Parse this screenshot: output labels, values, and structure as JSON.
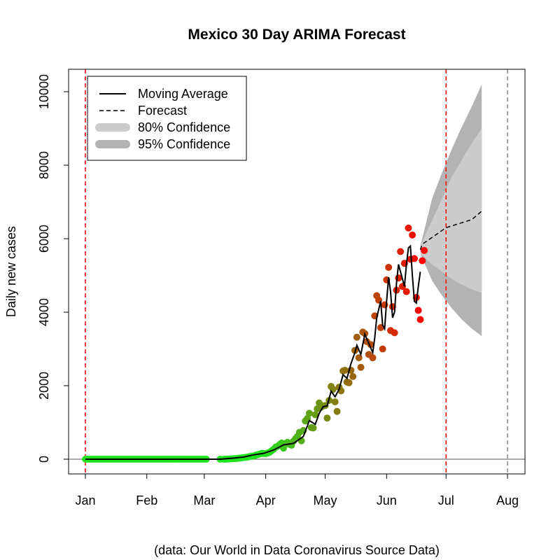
{
  "chart_data": {
    "type": "line",
    "title": "Mexico 30 Day ARIMA Forecast",
    "ylabel": "Daily new cases",
    "xlabel": "",
    "caption": "(data: Our World in Data Coronavirus Source Data)",
    "ylim": [
      -400,
      10400
    ],
    "yticks": [
      0,
      2000,
      4000,
      6000,
      8000,
      10000
    ],
    "xlim_days": [
      0,
      213
    ],
    "xticks": [
      {
        "label": "Jan",
        "day": 0
      },
      {
        "label": "Feb",
        "day": 31
      },
      {
        "label": "Mar",
        "day": 60
      },
      {
        "label": "Apr",
        "day": 91
      },
      {
        "label": "May",
        "day": 121
      },
      {
        "label": "Jun",
        "day": 152
      },
      {
        "label": "Jul",
        "day": 182
      },
      {
        "label": "Aug",
        "day": 213
      }
    ],
    "reference_lines": [
      {
        "day": 0,
        "color": "#ff0000",
        "style": "dashed"
      },
      {
        "day": 182,
        "color": "#ff0000",
        "style": "dashed"
      },
      {
        "day": 213,
        "color": "#888888",
        "style": "dashed"
      }
    ],
    "zero_line": true,
    "legend": {
      "position": "top-left",
      "entries": [
        {
          "label": "Moving Average",
          "kind": "line-solid",
          "color": "#000000"
        },
        {
          "label": "Forecast",
          "kind": "line-dashed",
          "color": "#000000"
        },
        {
          "label": "80% Confidence",
          "kind": "band",
          "color": "#cccccc"
        },
        {
          "label": "95% Confidence",
          "kind": "band",
          "color": "#b3b3b3"
        }
      ]
    },
    "colors": {
      "early": "#1fe31f",
      "late": "#ff0000",
      "ci80": "#cccccc",
      "ci95": "#b3b3b3",
      "forecast": "#000000",
      "moving_average": "#000000"
    },
    "series": [
      {
        "name": "Daily new cases",
        "kind": "scatter",
        "points": [
          [
            0,
            0
          ],
          [
            1,
            0
          ],
          [
            2,
            0
          ],
          [
            3,
            0
          ],
          [
            4,
            0
          ],
          [
            5,
            0
          ],
          [
            6,
            0
          ],
          [
            7,
            0
          ],
          [
            8,
            0
          ],
          [
            9,
            0
          ],
          [
            10,
            0
          ],
          [
            11,
            0
          ],
          [
            12,
            0
          ],
          [
            13,
            0
          ],
          [
            14,
            0
          ],
          [
            15,
            0
          ],
          [
            16,
            0
          ],
          [
            17,
            0
          ],
          [
            18,
            0
          ],
          [
            19,
            0
          ],
          [
            20,
            0
          ],
          [
            21,
            0
          ],
          [
            22,
            0
          ],
          [
            23,
            0
          ],
          [
            24,
            0
          ],
          [
            25,
            0
          ],
          [
            26,
            0
          ],
          [
            27,
            0
          ],
          [
            28,
            0
          ],
          [
            29,
            0
          ],
          [
            30,
            0
          ],
          [
            31,
            0
          ],
          [
            32,
            0
          ],
          [
            33,
            0
          ],
          [
            34,
            0
          ],
          [
            35,
            0
          ],
          [
            36,
            0
          ],
          [
            37,
            0
          ],
          [
            38,
            0
          ],
          [
            39,
            0
          ],
          [
            40,
            0
          ],
          [
            41,
            0
          ],
          [
            42,
            0
          ],
          [
            43,
            0
          ],
          [
            44,
            0
          ],
          [
            45,
            0
          ],
          [
            46,
            0
          ],
          [
            47,
            0
          ],
          [
            48,
            0
          ],
          [
            49,
            0
          ],
          [
            50,
            0
          ],
          [
            51,
            0
          ],
          [
            52,
            0
          ],
          [
            53,
            0
          ],
          [
            54,
            0
          ],
          [
            55,
            0
          ],
          [
            56,
            0
          ],
          [
            57,
            0
          ],
          [
            58,
            0
          ],
          [
            59,
            0
          ],
          [
            60,
            0
          ],
          [
            61,
            0
          ],
          [
            68,
            0
          ],
          [
            70,
            0
          ],
          [
            71,
            2
          ],
          [
            72,
            4
          ],
          [
            73,
            7
          ],
          [
            74,
            12
          ],
          [
            75,
            15
          ],
          [
            76,
            18
          ],
          [
            77,
            25
          ],
          [
            78,
            30
          ],
          [
            79,
            38
          ],
          [
            80,
            45
          ],
          [
            81,
            52
          ],
          [
            82,
            60
          ],
          [
            83,
            75
          ],
          [
            84,
            80
          ],
          [
            85,
            90
          ],
          [
            86,
            110
          ],
          [
            87,
            125
          ],
          [
            88,
            140
          ],
          [
            89,
            160
          ],
          [
            90,
            155
          ],
          [
            91,
            150
          ],
          [
            92,
            170
          ],
          [
            93,
            190
          ],
          [
            94,
            230
          ],
          [
            95,
            270
          ],
          [
            96,
            330
          ],
          [
            97,
            350
          ],
          [
            98,
            400
          ],
          [
            99,
            440
          ],
          [
            100,
            300
          ],
          [
            101,
            430
          ],
          [
            102,
            460
          ],
          [
            103,
            400
          ],
          [
            104,
            380
          ],
          [
            105,
            490
          ],
          [
            106,
            560
          ],
          [
            107,
            620
          ],
          [
            108,
            730
          ],
          [
            109,
            500
          ],
          [
            110,
            780
          ],
          [
            111,
            1040
          ],
          [
            112,
            1110
          ],
          [
            113,
            1250
          ],
          [
            114,
            860
          ],
          [
            115,
            850
          ],
          [
            116,
            1210
          ],
          [
            117,
            1370
          ],
          [
            118,
            1530
          ],
          [
            119,
            1420
          ],
          [
            120,
            1450
          ],
          [
            121,
            1460
          ],
          [
            122,
            1120
          ],
          [
            123,
            1600
          ],
          [
            124,
            1980
          ],
          [
            125,
            1900
          ],
          [
            126,
            1560
          ],
          [
            127,
            1300
          ],
          [
            128,
            1960
          ],
          [
            129,
            1860
          ],
          [
            130,
            2400
          ],
          [
            131,
            2420
          ],
          [
            132,
            2100
          ],
          [
            133,
            2080
          ],
          [
            134,
            2420
          ],
          [
            135,
            2250
          ],
          [
            136,
            2960
          ],
          [
            137,
            3320
          ],
          [
            138,
            2760
          ],
          [
            139,
            2500
          ],
          [
            140,
            3460
          ],
          [
            141,
            3420
          ],
          [
            142,
            3200
          ],
          [
            143,
            2850
          ],
          [
            144,
            3120
          ],
          [
            145,
            2760
          ],
          [
            146,
            3900
          ],
          [
            147,
            4450
          ],
          [
            148,
            4330
          ],
          [
            149,
            3580
          ],
          [
            150,
            3000
          ],
          [
            151,
            4200
          ],
          [
            152,
            4880
          ],
          [
            153,
            5220
          ],
          [
            154,
            3500
          ],
          [
            155,
            4150
          ],
          [
            156,
            3440
          ],
          [
            157,
            4600
          ],
          [
            158,
            4930
          ],
          [
            159,
            5650
          ],
          [
            160,
            4700
          ],
          [
            161,
            5330
          ],
          [
            162,
            4560
          ],
          [
            163,
            6290
          ],
          [
            164,
            5440
          ],
          [
            165,
            6100
          ],
          [
            166,
            5460
          ],
          [
            167,
            4400
          ],
          [
            168,
            4050
          ],
          [
            169,
            3800
          ],
          [
            170,
            5400
          ],
          [
            171,
            5680
          ]
        ]
      },
      {
        "name": "Moving Average",
        "kind": "line",
        "points": [
          [
            0,
            0
          ],
          [
            61,
            0
          ],
          [
            68,
            0
          ],
          [
            75,
            30
          ],
          [
            80,
            60
          ],
          [
            85,
            120
          ],
          [
            90,
            160
          ],
          [
            95,
            250
          ],
          [
            100,
            390
          ],
          [
            105,
            430
          ],
          [
            110,
            620
          ],
          [
            113,
            1050
          ],
          [
            116,
            950
          ],
          [
            118,
            1250
          ],
          [
            120,
            1430
          ],
          [
            122,
            1450
          ],
          [
            124,
            1850
          ],
          [
            126,
            1700
          ],
          [
            128,
            1900
          ],
          [
            130,
            2300
          ],
          [
            132,
            2200
          ],
          [
            134,
            2600
          ],
          [
            136,
            2900
          ],
          [
            137,
            3100
          ],
          [
            139,
            2850
          ],
          [
            141,
            3400
          ],
          [
            143,
            3150
          ],
          [
            145,
            2900
          ],
          [
            146,
            3300
          ],
          [
            147,
            3850
          ],
          [
            149,
            4300
          ],
          [
            150,
            3650
          ],
          [
            151,
            3550
          ],
          [
            152,
            4300
          ],
          [
            153,
            4950
          ],
          [
            154,
            4550
          ],
          [
            155,
            3850
          ],
          [
            156,
            4000
          ],
          [
            157,
            4800
          ],
          [
            158,
            5300
          ],
          [
            159,
            5100
          ],
          [
            160,
            4900
          ],
          [
            161,
            4700
          ],
          [
            162,
            5300
          ],
          [
            163,
            5750
          ],
          [
            164,
            5800
          ],
          [
            165,
            5000
          ],
          [
            166,
            4300
          ],
          [
            167,
            4250
          ],
          [
            168,
            4700
          ],
          [
            169,
            5100
          ]
        ]
      },
      {
        "name": "Forecast",
        "kind": "line-dashed",
        "points": [
          [
            169,
            5700
          ],
          [
            170,
            5850
          ],
          [
            182,
            6300
          ],
          [
            195,
            6520
          ],
          [
            200,
            6750
          ]
        ]
      },
      {
        "name": "95% Confidence",
        "kind": "band",
        "x": [
          169,
          175,
          180,
          185,
          190,
          195,
          200
        ],
        "upper": [
          5800,
          7100,
          7800,
          8450,
          9050,
          9600,
          10200
        ],
        "lower": [
          5600,
          4850,
          4450,
          4100,
          3800,
          3550,
          3350
        ]
      },
      {
        "name": "80% Confidence",
        "kind": "band",
        "x": [
          169,
          175,
          180,
          185,
          190,
          195,
          200
        ],
        "upper": [
          5800,
          6500,
          7100,
          7700,
          8150,
          8600,
          9000
        ],
        "lower": [
          5600,
          5300,
          5100,
          4900,
          4750,
          4620,
          4530
        ]
      }
    ]
  }
}
